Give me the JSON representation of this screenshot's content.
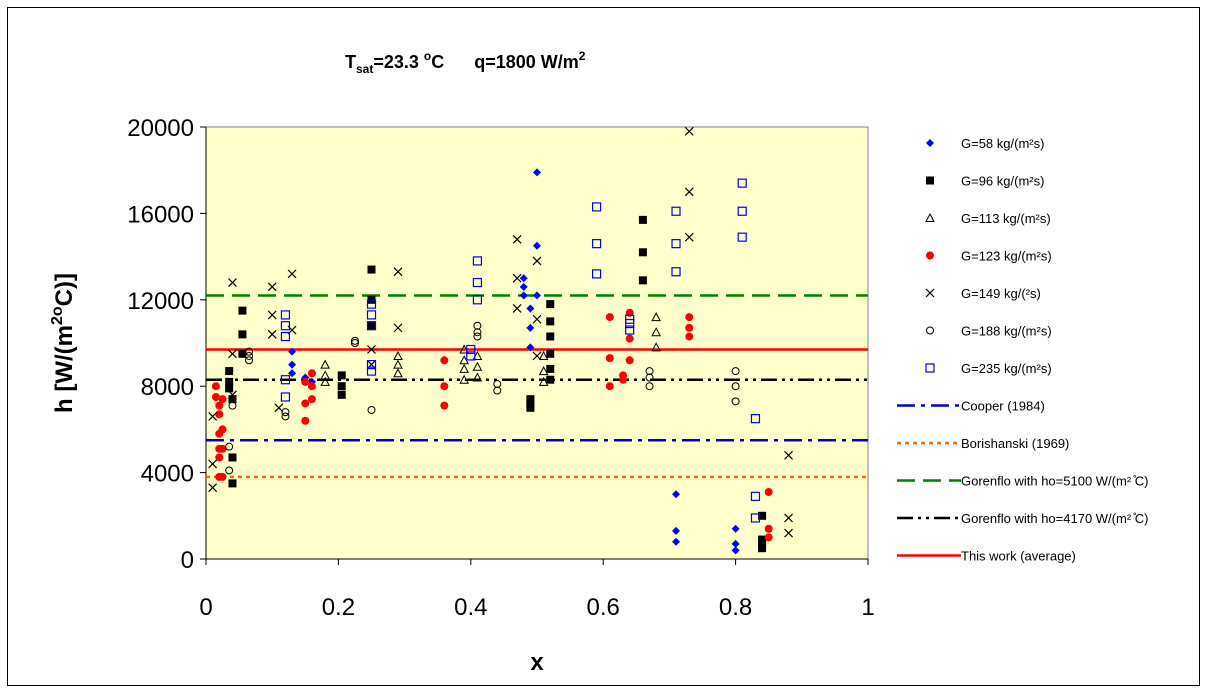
{
  "chart_data": {
    "type": "scatter",
    "title_parts": {
      "t": "T",
      "t_sub": "sat",
      "t_eq": "=23.3 ",
      "t_deg": "o",
      "t_unit": "C",
      "q": "q=1800 W/m",
      "q_sup": "2"
    },
    "xlabel": "x",
    "ylabel_parts": {
      "a": "h [W/(m",
      "sup1": "2o",
      "b": "C)]"
    },
    "xlim": [
      0,
      1
    ],
    "ylim": [
      0,
      20000
    ],
    "xticks": [
      "0",
      "0.2",
      "0.4",
      "0.6",
      "0.8",
      "1"
    ],
    "yticks": [
      "0",
      "4000",
      "8000",
      "12000",
      "16000",
      "20000"
    ],
    "xtick_values": [
      0,
      0.2,
      0.4,
      0.6,
      0.8,
      1
    ],
    "ytick_values": [
      0,
      4000,
      8000,
      12000,
      16000,
      20000
    ],
    "plot_background": "#ffffcc",
    "legend_position": "right",
    "series": [
      {
        "name": "G=58 kg/(m²s)",
        "marker": "diamond-filled",
        "color": "#0000ff",
        "points": [
          [
            0.13,
            9600
          ],
          [
            0.13,
            9000
          ],
          [
            0.13,
            8600
          ],
          [
            0.15,
            8400
          ],
          [
            0.16,
            8200
          ],
          [
            0.48,
            13000
          ],
          [
            0.48,
            12600
          ],
          [
            0.48,
            12200
          ],
          [
            0.49,
            11600
          ],
          [
            0.49,
            10700
          ],
          [
            0.49,
            9800
          ],
          [
            0.5,
            14500
          ],
          [
            0.5,
            12200
          ],
          [
            0.5,
            17900
          ],
          [
            0.71,
            3000
          ],
          [
            0.71,
            1300
          ],
          [
            0.71,
            800
          ],
          [
            0.8,
            1400
          ],
          [
            0.8,
            700
          ],
          [
            0.8,
            400
          ]
        ]
      },
      {
        "name": "G=96 kg/(m²s)",
        "marker": "square-filled",
        "color": "#000000",
        "points": [
          [
            0.035,
            8700
          ],
          [
            0.035,
            8200
          ],
          [
            0.035,
            7900
          ],
          [
            0.04,
            7400
          ],
          [
            0.04,
            4700
          ],
          [
            0.04,
            3500
          ],
          [
            0.055,
            11500
          ],
          [
            0.055,
            10400
          ],
          [
            0.055,
            9500
          ],
          [
            0.205,
            8500
          ],
          [
            0.205,
            8000
          ],
          [
            0.205,
            7600
          ],
          [
            0.25,
            13400
          ],
          [
            0.25,
            12000
          ],
          [
            0.25,
            10800
          ],
          [
            0.49,
            7400
          ],
          [
            0.49,
            7200
          ],
          [
            0.49,
            7000
          ],
          [
            0.52,
            11800
          ],
          [
            0.52,
            11000
          ],
          [
            0.52,
            10300
          ],
          [
            0.52,
            9500
          ],
          [
            0.52,
            8800
          ],
          [
            0.52,
            8300
          ],
          [
            0.66,
            15700
          ],
          [
            0.66,
            14200
          ],
          [
            0.66,
            12900
          ],
          [
            0.84,
            2000
          ],
          [
            0.84,
            900
          ],
          [
            0.84,
            700
          ],
          [
            0.84,
            500
          ]
        ]
      },
      {
        "name": "G=113 kg/(m²s)",
        "marker": "triangle-open",
        "color": "#000000",
        "points": [
          [
            0.18,
            9000
          ],
          [
            0.18,
            8500
          ],
          [
            0.18,
            8200
          ],
          [
            0.29,
            9400
          ],
          [
            0.29,
            9000
          ],
          [
            0.29,
            8600
          ],
          [
            0.39,
            9700
          ],
          [
            0.39,
            9200
          ],
          [
            0.39,
            8800
          ],
          [
            0.39,
            8300
          ],
          [
            0.41,
            9400
          ],
          [
            0.41,
            8900
          ],
          [
            0.41,
            8400
          ],
          [
            0.51,
            9400
          ],
          [
            0.51,
            8700
          ],
          [
            0.51,
            8200
          ],
          [
            0.68,
            11200
          ],
          [
            0.68,
            10500
          ],
          [
            0.68,
            9800
          ]
        ]
      },
      {
        "name": "G=123 kg/(m²s)",
        "marker": "circle-filled",
        "color": "#ff0000",
        "points": [
          [
            0.015,
            8000
          ],
          [
            0.015,
            7500
          ],
          [
            0.02,
            7100
          ],
          [
            0.02,
            6700
          ],
          [
            0.02,
            5800
          ],
          [
            0.02,
            5100
          ],
          [
            0.02,
            4700
          ],
          [
            0.02,
            3800
          ],
          [
            0.025,
            7400
          ],
          [
            0.025,
            6000
          ],
          [
            0.025,
            5100
          ],
          [
            0.025,
            3800
          ],
          [
            0.15,
            8200
          ],
          [
            0.15,
            7200
          ],
          [
            0.15,
            6400
          ],
          [
            0.16,
            8600
          ],
          [
            0.16,
            8000
          ],
          [
            0.16,
            7400
          ],
          [
            0.36,
            9200
          ],
          [
            0.36,
            8000
          ],
          [
            0.36,
            7100
          ],
          [
            0.61,
            11200
          ],
          [
            0.61,
            9300
          ],
          [
            0.61,
            8000
          ],
          [
            0.63,
            8500
          ],
          [
            0.63,
            8300
          ],
          [
            0.64,
            11400
          ],
          [
            0.64,
            10200
          ],
          [
            0.64,
            9200
          ],
          [
            0.73,
            11200
          ],
          [
            0.73,
            10700
          ],
          [
            0.73,
            10300
          ],
          [
            0.85,
            3100
          ],
          [
            0.85,
            1400
          ],
          [
            0.85,
            1000
          ]
        ]
      },
      {
        "name": "G=149 kg/(²s)",
        "marker": "cross",
        "color": "#000000",
        "points": [
          [
            0.01,
            6600
          ],
          [
            0.01,
            4400
          ],
          [
            0.01,
            3300
          ],
          [
            0.04,
            12800
          ],
          [
            0.04,
            9500
          ],
          [
            0.04,
            7600
          ],
          [
            0.1,
            12600
          ],
          [
            0.1,
            11300
          ],
          [
            0.1,
            10400
          ],
          [
            0.11,
            7000
          ],
          [
            0.13,
            13200
          ],
          [
            0.13,
            10600
          ],
          [
            0.25,
            9700
          ],
          [
            0.25,
            9000
          ],
          [
            0.29,
            13300
          ],
          [
            0.29,
            10700
          ],
          [
            0.47,
            14800
          ],
          [
            0.47,
            13000
          ],
          [
            0.47,
            11600
          ],
          [
            0.5,
            13800
          ],
          [
            0.5,
            11100
          ],
          [
            0.5,
            9400
          ],
          [
            0.73,
            19800
          ],
          [
            0.73,
            17000
          ],
          [
            0.73,
            14900
          ],
          [
            0.88,
            4800
          ],
          [
            0.88,
            1900
          ],
          [
            0.88,
            1200
          ]
        ]
      },
      {
        "name": "G=188 kg/(m²s)",
        "marker": "circle-open",
        "color": "#000000",
        "points": [
          [
            0.035,
            5200
          ],
          [
            0.035,
            4100
          ],
          [
            0.04,
            7100
          ],
          [
            0.065,
            9600
          ],
          [
            0.065,
            9400
          ],
          [
            0.065,
            9200
          ],
          [
            0.12,
            6800
          ],
          [
            0.12,
            6600
          ],
          [
            0.225,
            10100
          ],
          [
            0.225,
            10000
          ],
          [
            0.25,
            6900
          ],
          [
            0.44,
            8100
          ],
          [
            0.44,
            7800
          ],
          [
            0.41,
            10800
          ],
          [
            0.41,
            10500
          ],
          [
            0.41,
            10300
          ],
          [
            0.67,
            8700
          ],
          [
            0.67,
            8400
          ],
          [
            0.67,
            8000
          ],
          [
            0.8,
            8700
          ],
          [
            0.8,
            8000
          ],
          [
            0.8,
            7300
          ]
        ]
      },
      {
        "name": "G=235 kg/(m²s)",
        "marker": "square-open",
        "color": "#0000ff",
        "points": [
          [
            0.12,
            11300
          ],
          [
            0.12,
            10800
          ],
          [
            0.12,
            10300
          ],
          [
            0.12,
            8300
          ],
          [
            0.12,
            7500
          ],
          [
            0.25,
            11800
          ],
          [
            0.25,
            11300
          ],
          [
            0.25,
            10800
          ],
          [
            0.25,
            9000
          ],
          [
            0.25,
            8700
          ],
          [
            0.4,
            9700
          ],
          [
            0.4,
            9400
          ],
          [
            0.41,
            13800
          ],
          [
            0.41,
            12800
          ],
          [
            0.41,
            12000
          ],
          [
            0.59,
            16300
          ],
          [
            0.59,
            14600
          ],
          [
            0.59,
            13200
          ],
          [
            0.64,
            11100
          ],
          [
            0.64,
            10900
          ],
          [
            0.64,
            10600
          ],
          [
            0.71,
            16100
          ],
          [
            0.71,
            14600
          ],
          [
            0.71,
            13300
          ],
          [
            0.81,
            17400
          ],
          [
            0.81,
            16100
          ],
          [
            0.81,
            14900
          ],
          [
            0.83,
            6500
          ],
          [
            0.83,
            2900
          ],
          [
            0.83,
            1900
          ]
        ]
      },
      {
        "name": "Cooper (1984)",
        "line": "dashdot",
        "color": "#0000cc",
        "y": 5500
      },
      {
        "name": "Borishanski (1969)",
        "line": "dotted",
        "color": "#ff6600",
        "y": 3800
      },
      {
        "name": "Gorenflo with ho=5100 W/(m² ̊C)",
        "line": "dashed",
        "color": "#008000",
        "y": 12200
      },
      {
        "name": "Gorenflo with ho=4170 W/(m² ̊C)",
        "line": "dashdotdot",
        "color": "#000000",
        "y": 8300
      },
      {
        "name": "This work (average)",
        "line": "solid",
        "color": "#ff0000",
        "y": 9700
      }
    ]
  }
}
